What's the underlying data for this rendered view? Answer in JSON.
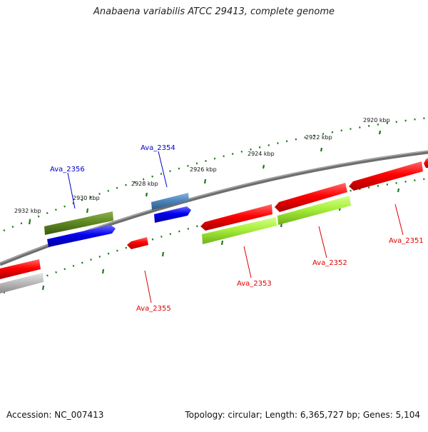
{
  "title": "Anabaena variabilis ATCC 29413, complete genome",
  "footer": {
    "accession": "Accession: NC_007413",
    "info": "Topology: circular; Length: 6,365,727 bp; Genes: 5,104"
  },
  "scale_labels": [
    "2920 kbp",
    "2922 kbp",
    "2924 kbp",
    "2926 kbp",
    "2928 kbp",
    "2930 kbp",
    "2932 kbp"
  ],
  "gene_labels": {
    "ava_2356": "Ava_2356",
    "ava_2354": "Ava_2354",
    "ava_2355": "Ava_2355",
    "ava_2353": "Ava_2353",
    "ava_2352": "Ava_2352",
    "ava_2351": "Ava_2351"
  },
  "colors": {
    "forward_label": "#0000c8",
    "reverse_label": "#e00000",
    "tick": "#1a7a1a",
    "backbone": "#7a7a7a"
  }
}
